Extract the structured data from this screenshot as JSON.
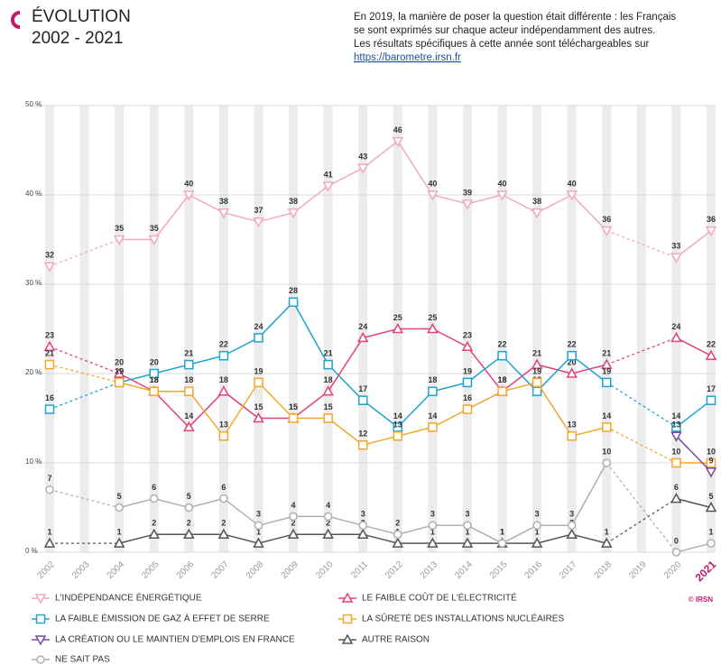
{
  "header": {
    "title": "ÉVOLUTION",
    "subtitle": "2002 - 2021",
    "note": [
      "En 2019, la manière de poser la question était différente : les Français",
      "se sont exprimés sur chaque acteur indépendamment des autres.",
      "Les résultats spécifiques à cette année sont téléchargeables sur"
    ],
    "link": "https://barometre.irsn.fr"
  },
  "credit": "© IRSN",
  "chart_data": {
    "type": "line",
    "categories": [
      "2002",
      "2003",
      "2004",
      "2005",
      "2006",
      "2007",
      "2008",
      "2009",
      "2010",
      "2011",
      "2012",
      "2013",
      "2014",
      "2015",
      "2016",
      "2017",
      "2018",
      "2019",
      "2020",
      "2021"
    ],
    "ylim": [
      0,
      50
    ],
    "yticks": [
      {
        "value": 0,
        "label": "0 %"
      },
      {
        "value": 10,
        "label": "10 %"
      },
      {
        "value": 20,
        "label": "20 %"
      },
      {
        "value": 30,
        "label": "30 %"
      },
      {
        "value": 40,
        "label": "40 %"
      },
      {
        "value": 50,
        "label": "50 %"
      }
    ],
    "series": [
      {
        "name": "L'INDÉPENDANCE ÉNERGÉTIQUE",
        "color": "#f2a7c6",
        "marker": "triangle-down",
        "values": [
          32,
          null,
          35,
          35,
          40,
          38,
          37,
          38,
          41,
          43,
          46,
          40,
          39,
          40,
          38,
          40,
          36,
          null,
          33,
          36
        ]
      },
      {
        "name": "LE FAIBLE COÛT DE L'ÉLECTRICITÉ",
        "color": "#e3407f",
        "marker": "triangle-up",
        "values": [
          23,
          null,
          20,
          18,
          14,
          18,
          15,
          15,
          18,
          24,
          25,
          25,
          23,
          18,
          21,
          20,
          21,
          null,
          24,
          22
        ]
      },
      {
        "name": "LA FAIBLE ÉMISSION DE GAZ À EFFET DE SERRE",
        "color": "#1fa3cf",
        "marker": "square",
        "values": [
          16,
          null,
          19,
          20,
          21,
          22,
          24,
          28,
          21,
          17,
          14,
          18,
          19,
          22,
          18,
          22,
          19,
          null,
          14,
          17
        ]
      },
      {
        "name": "LA SÛRETÉ DES INSTALLATIONS NUCLÉAIRES",
        "color": "#f5a52a",
        "marker": "square",
        "values": [
          21,
          null,
          19,
          18,
          18,
          13,
          19,
          15,
          15,
          12,
          13,
          14,
          16,
          18,
          19,
          13,
          14,
          null,
          10,
          10
        ]
      },
      {
        "name": "LA CRÉATION OU LE MAINTIEN D'EMPLOIS EN FRANCE",
        "color": "#7a4a9c",
        "marker": "triangle-down",
        "values": [
          null,
          null,
          null,
          null,
          null,
          null,
          null,
          null,
          null,
          null,
          null,
          null,
          null,
          null,
          null,
          null,
          null,
          null,
          13,
          9
        ]
      },
      {
        "name": "AUTRE RAISON",
        "color": "#555555",
        "marker": "triangle-up",
        "values": [
          1,
          null,
          1,
          2,
          2,
          2,
          1,
          2,
          2,
          2,
          1,
          1,
          1,
          1,
          1,
          2,
          1,
          null,
          6,
          5
        ]
      },
      {
        "name": "NE SAIT PAS",
        "color": "#b0b0b0",
        "marker": "circle",
        "values": [
          7,
          null,
          5,
          6,
          5,
          6,
          3,
          4,
          4,
          3,
          2,
          3,
          3,
          1,
          3,
          3,
          10,
          null,
          0,
          1
        ]
      }
    ]
  }
}
